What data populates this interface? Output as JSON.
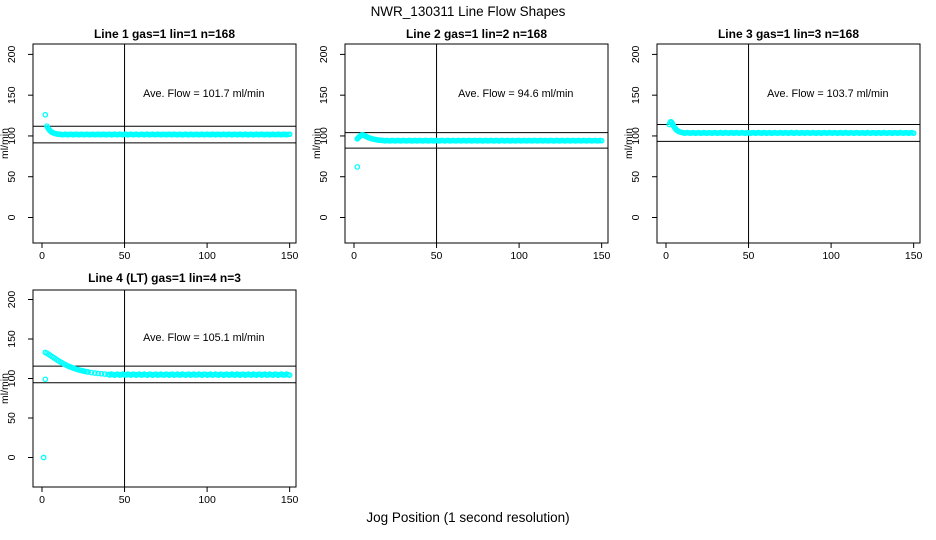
{
  "page": {
    "title": "NWR_130311  Line Flow Shapes",
    "xlabel": "Jog Position (1 second resolution)"
  },
  "style": {
    "marker_color": "#00FFFF",
    "axis_color": "#000000",
    "text_color": "#000000",
    "background": "#FFFFFF"
  },
  "chart_data": [
    {
      "type": "scatter",
      "title": "Line 1 gas=1 lin=1 n=168",
      "gas": 1,
      "lin": 1,
      "n": 168,
      "annotation": "Ave. Flow =  101.7  ml/min",
      "ave_flow_ml_min": 101.7,
      "ylabel": "ml/min",
      "x_ticks": [
        0,
        50,
        100,
        150
      ],
      "y_ticks": [
        0,
        50,
        100,
        150,
        200
      ],
      "xlim": [
        -6,
        156
      ],
      "ylim": [
        -30,
        212
      ],
      "grid": false,
      "legend": "none",
      "vline_x": 50,
      "hlines": [
        111.9,
        91.5
      ],
      "outlier_points": [
        [
          2,
          126
        ]
      ],
      "transient_points": [
        [
          3,
          112
        ],
        [
          3.5,
          110
        ],
        [
          4,
          108.5
        ],
        [
          4.5,
          107.3
        ],
        [
          5,
          106.2
        ],
        [
          5.5,
          105.3
        ],
        [
          6,
          104.6
        ],
        [
          7,
          103.6
        ],
        [
          8,
          102.9
        ],
        [
          9,
          102.4
        ],
        [
          10,
          102.1
        ]
      ],
      "plateau": {
        "x_start": 11,
        "x_end": 150,
        "y": 101.8
      }
    },
    {
      "type": "scatter",
      "title": "Line 2 gas=1 lin=2 n=168",
      "gas": 1,
      "lin": 2,
      "n": 168,
      "annotation": "Ave. Flow =  94.6  ml/min",
      "ave_flow_ml_min": 94.6,
      "ylabel": "ml/min",
      "x_ticks": [
        0,
        50,
        100,
        150
      ],
      "y_ticks": [
        0,
        50,
        100,
        150,
        200
      ],
      "xlim": [
        -6,
        156
      ],
      "ylim": [
        -30,
        212
      ],
      "grid": false,
      "legend": "none",
      "vline_x": 50,
      "hlines": [
        104.1,
        85.1
      ],
      "outlier_points": [
        [
          2,
          62
        ]
      ],
      "transient_points": [
        [
          2,
          96.5
        ],
        [
          2.5,
          97.5
        ],
        [
          3,
          98.6
        ],
        [
          3.5,
          99.6
        ],
        [
          4,
          100.4
        ],
        [
          4.5,
          101.0
        ],
        [
          5,
          101.2
        ],
        [
          5.5,
          101.1
        ],
        [
          6,
          100.7
        ],
        [
          6.5,
          100.2
        ],
        [
          7,
          99.7
        ],
        [
          7.5,
          99.2
        ],
        [
          8,
          98.7
        ],
        [
          9,
          97.8
        ],
        [
          10,
          97.1
        ],
        [
          11,
          96.5
        ],
        [
          12,
          96.0
        ],
        [
          13,
          95.6
        ],
        [
          14,
          95.2
        ],
        [
          15,
          94.9
        ],
        [
          16,
          94.7
        ],
        [
          17,
          94.5
        ],
        [
          18,
          94.4
        ]
      ],
      "plateau": {
        "x_start": 19,
        "x_end": 150,
        "y": 94.2
      }
    },
    {
      "type": "scatter",
      "title": "Line 3 gas=1 lin=3 n=168",
      "gas": 1,
      "lin": 3,
      "n": 168,
      "annotation": "Ave. Flow =  103.7  ml/min",
      "ave_flow_ml_min": 103.7,
      "ylabel": "ml/min",
      "x_ticks": [
        0,
        50,
        100,
        150
      ],
      "y_ticks": [
        0,
        50,
        100,
        150,
        200
      ],
      "xlim": [
        -6,
        156
      ],
      "ylim": [
        -30,
        212
      ],
      "grid": false,
      "legend": "none",
      "vline_x": 50,
      "hlines": [
        114.1,
        93.3
      ],
      "outlier_points": [],
      "transient_points": [
        [
          2,
          114
        ],
        [
          2.5,
          116.5
        ],
        [
          3,
          117.5
        ],
        [
          3.5,
          116.5
        ],
        [
          4,
          114.5
        ],
        [
          4.5,
          112.5
        ],
        [
          5,
          110.8
        ],
        [
          5.5,
          109.4
        ],
        [
          6,
          108.2
        ],
        [
          6.5,
          107.2
        ],
        [
          7,
          106.4
        ],
        [
          7.5,
          105.8
        ],
        [
          8,
          105.2
        ],
        [
          9,
          104.5
        ],
        [
          10,
          104.1
        ]
      ],
      "plateau": {
        "x_start": 11,
        "x_end": 150,
        "y": 103.7
      }
    },
    {
      "type": "scatter",
      "title": "Line 4 (LT) gas=1 lin=4 n=3",
      "gas": 1,
      "lin": 4,
      "n": 3,
      "annotation": "Ave. Flow =  105.1  ml/min",
      "ave_flow_ml_min": 105.1,
      "ylabel": "ml/min",
      "x_ticks": [
        0,
        50,
        100,
        150
      ],
      "y_ticks": [
        0,
        50,
        100,
        150,
        200
      ],
      "xlim": [
        -6,
        156
      ],
      "ylim": [
        -30,
        212
      ],
      "grid": false,
      "legend": "none",
      "vline_x": 50,
      "hlines": [
        115.6,
        94.6
      ],
      "outlier_points": [
        [
          1,
          0
        ],
        [
          2,
          99
        ]
      ],
      "transient_points": [
        [
          2,
          133
        ],
        [
          3,
          132
        ],
        [
          4,
          130.7
        ],
        [
          5,
          129.3
        ],
        [
          6,
          127.9
        ],
        [
          7,
          126.5
        ],
        [
          8,
          125.1
        ],
        [
          9,
          123.7
        ],
        [
          10,
          122.4
        ],
        [
          11,
          121.1
        ],
        [
          12,
          119.9
        ],
        [
          13,
          118.7
        ],
        [
          14,
          117.6
        ],
        [
          15,
          116.6
        ],
        [
          16,
          115.6
        ],
        [
          17,
          114.7
        ],
        [
          18,
          113.9
        ],
        [
          19,
          113.1
        ],
        [
          20,
          112.4
        ],
        [
          21,
          111.7
        ],
        [
          22,
          111.1
        ],
        [
          23,
          110.5
        ],
        [
          24,
          110.0
        ],
        [
          25,
          109.5
        ],
        [
          26,
          109.0
        ],
        [
          27,
          108.6
        ],
        [
          28,
          108.2
        ],
        [
          30,
          107.5
        ],
        [
          32,
          106.9
        ],
        [
          34,
          106.4
        ],
        [
          36,
          106.0
        ],
        [
          38,
          105.6
        ],
        [
          40,
          105.3
        ]
      ],
      "plateau": {
        "x_start": 41,
        "x_end": 150,
        "y": 104.9
      }
    }
  ]
}
